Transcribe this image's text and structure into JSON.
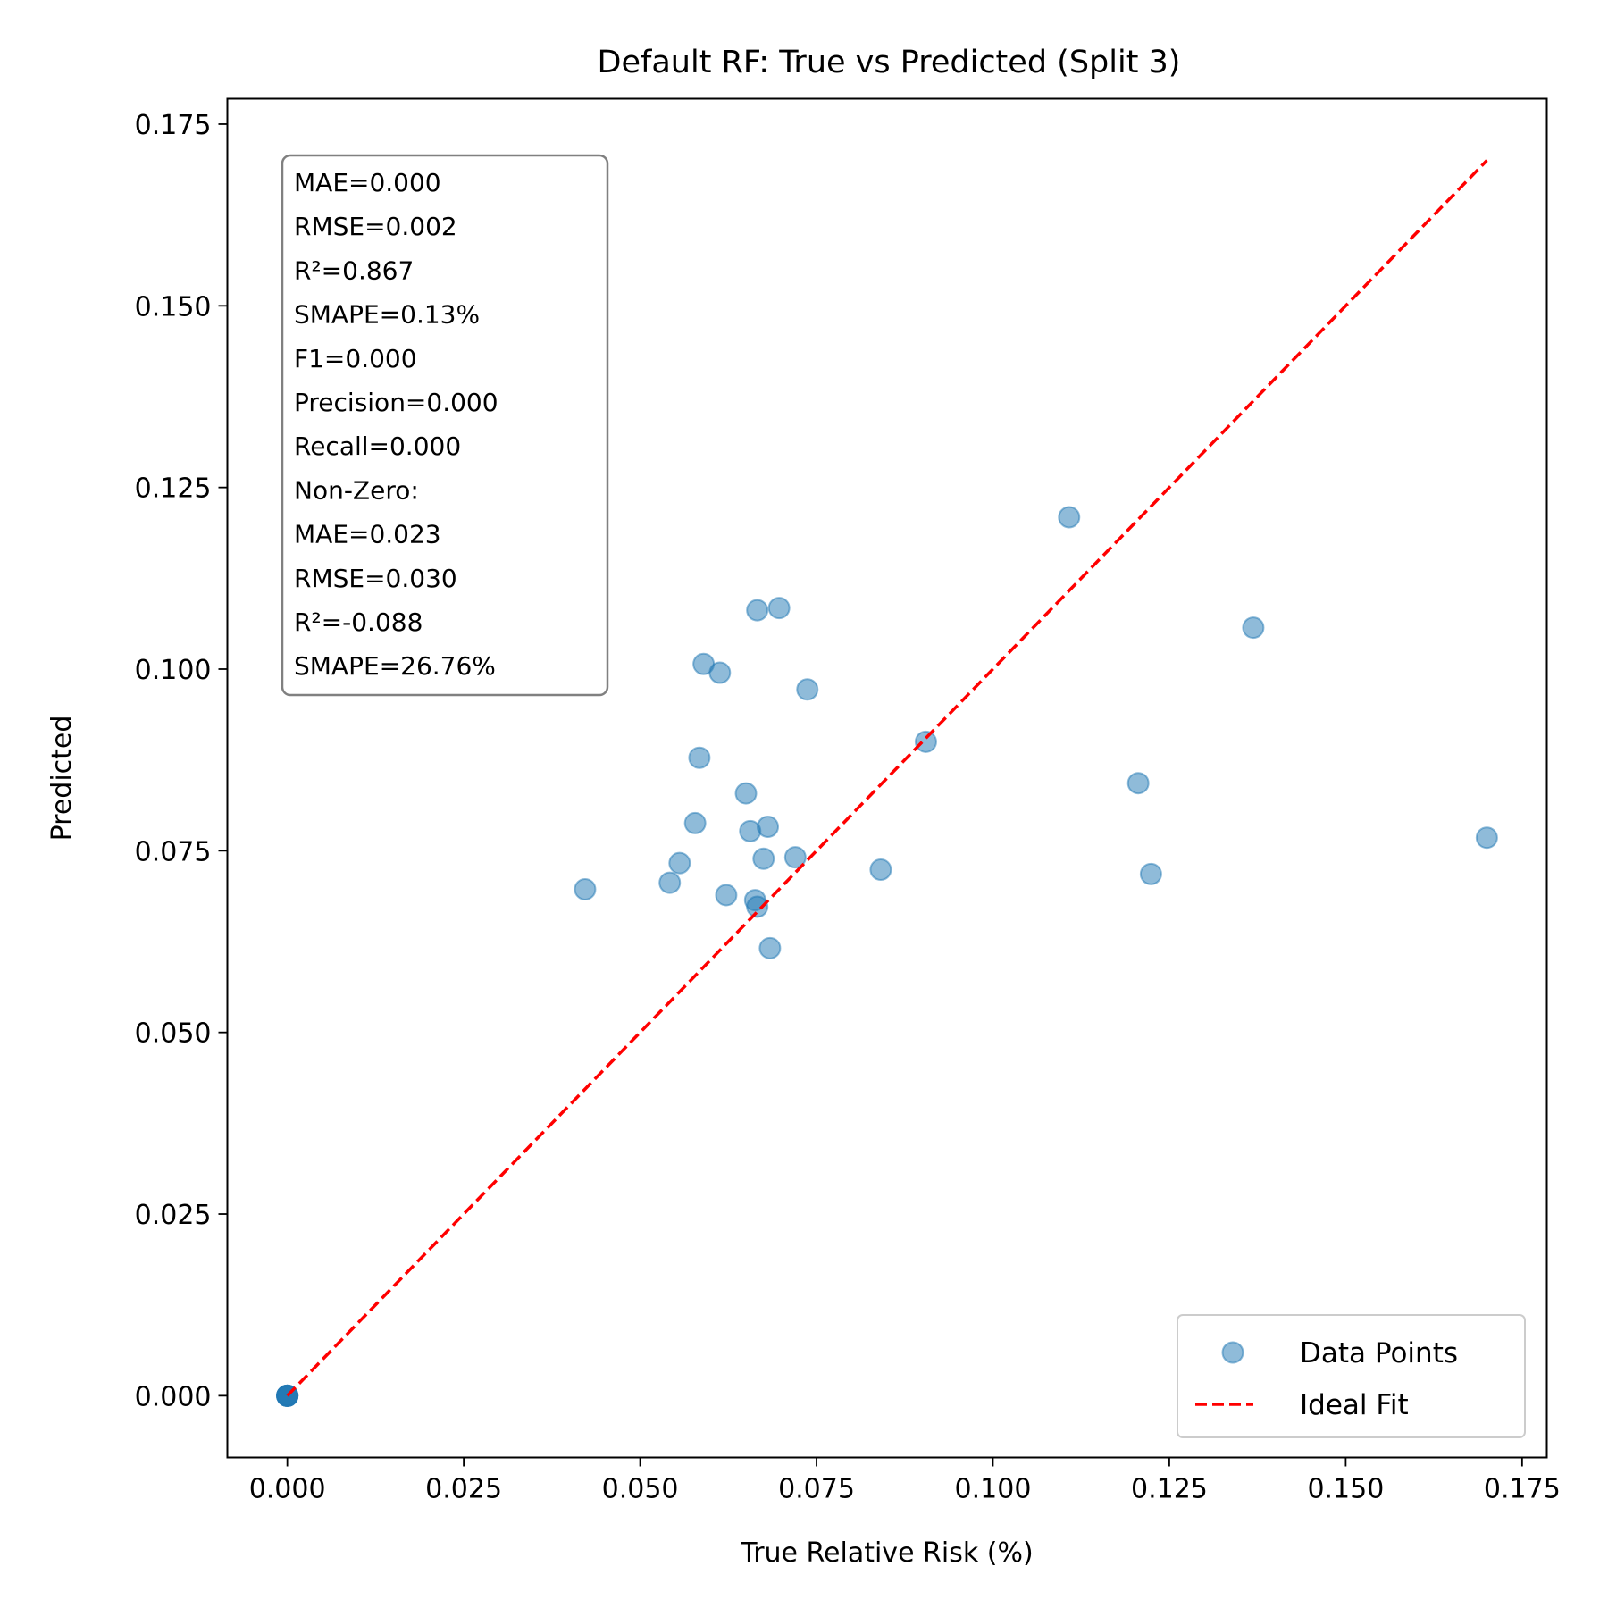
{
  "chart_data": {
    "type": "scatter",
    "title": "Default RF: True vs Predicted (Split 3)",
    "xlabel": "True Relative Risk (%)",
    "ylabel": "Predicted",
    "xlim": [
      -0.0085,
      0.1785
    ],
    "ylim": [
      -0.0085,
      0.1785
    ],
    "xticks": [
      0.0,
      0.025,
      0.05,
      0.075,
      0.1,
      0.125,
      0.15,
      0.175
    ],
    "yticks": [
      0.0,
      0.025,
      0.05,
      0.075,
      0.1,
      0.125,
      0.15,
      0.175
    ],
    "xtick_labels": [
      "0.000",
      "0.025",
      "0.050",
      "0.075",
      "0.100",
      "0.125",
      "0.150",
      "0.175"
    ],
    "ytick_labels": [
      "0.000",
      "0.025",
      "0.050",
      "0.075",
      "0.100",
      "0.125",
      "0.150",
      "0.175"
    ],
    "grid": false,
    "legend_position": "lower-right",
    "series": [
      {
        "name": "Data Points",
        "kind": "scatter",
        "color": "#1f77b4",
        "points": [
          {
            "x": 0.0,
            "y": 0.0
          },
          {
            "x": 0.0,
            "y": 0.0
          },
          {
            "x": 0.0,
            "y": 0.0
          },
          {
            "x": 0.0,
            "y": 0.0
          },
          {
            "x": 0.0,
            "y": 0.0
          },
          {
            "x": 0.0,
            "y": 0.0
          },
          {
            "x": 0.0422,
            "y": 0.0697
          },
          {
            "x": 0.0542,
            "y": 0.0706
          },
          {
            "x": 0.0556,
            "y": 0.0733
          },
          {
            "x": 0.0578,
            "y": 0.0788
          },
          {
            "x": 0.0584,
            "y": 0.0878
          },
          {
            "x": 0.059,
            "y": 0.1007
          },
          {
            "x": 0.0613,
            "y": 0.0995
          },
          {
            "x": 0.0622,
            "y": 0.0689
          },
          {
            "x": 0.065,
            "y": 0.0829
          },
          {
            "x": 0.0656,
            "y": 0.0777
          },
          {
            "x": 0.0663,
            "y": 0.0682
          },
          {
            "x": 0.0666,
            "y": 0.0673
          },
          {
            "x": 0.0666,
            "y": 0.1081
          },
          {
            "x": 0.0675,
            "y": 0.0739
          },
          {
            "x": 0.0681,
            "y": 0.0783
          },
          {
            "x": 0.0684,
            "y": 0.0616
          },
          {
            "x": 0.0697,
            "y": 0.1084
          },
          {
            "x": 0.072,
            "y": 0.0741
          },
          {
            "x": 0.0737,
            "y": 0.0972
          },
          {
            "x": 0.0841,
            "y": 0.0724
          },
          {
            "x": 0.0905,
            "y": 0.09
          },
          {
            "x": 0.1108,
            "y": 0.1209
          },
          {
            "x": 0.1206,
            "y": 0.0843
          },
          {
            "x": 0.1224,
            "y": 0.0718
          },
          {
            "x": 0.1369,
            "y": 0.1057
          },
          {
            "x": 0.17,
            "y": 0.0768
          }
        ]
      },
      {
        "name": "Ideal Fit",
        "kind": "line",
        "color": "#ff0000",
        "dash": "dashed",
        "points": [
          {
            "x": 0.0,
            "y": 0.0
          },
          {
            "x": 0.17,
            "y": 0.17
          }
        ]
      }
    ],
    "annotation": {
      "box_position": "upper-left",
      "lines": [
        "MAE=0.000",
        "RMSE=0.002",
        "R²=0.867",
        "SMAPE=0.13%",
        "F1=0.000",
        "Precision=0.000",
        "Recall=0.000",
        "Non-Zero:",
        "MAE=0.023",
        "RMSE=0.030",
        "R²=-0.088",
        "SMAPE=26.76%"
      ]
    }
  }
}
